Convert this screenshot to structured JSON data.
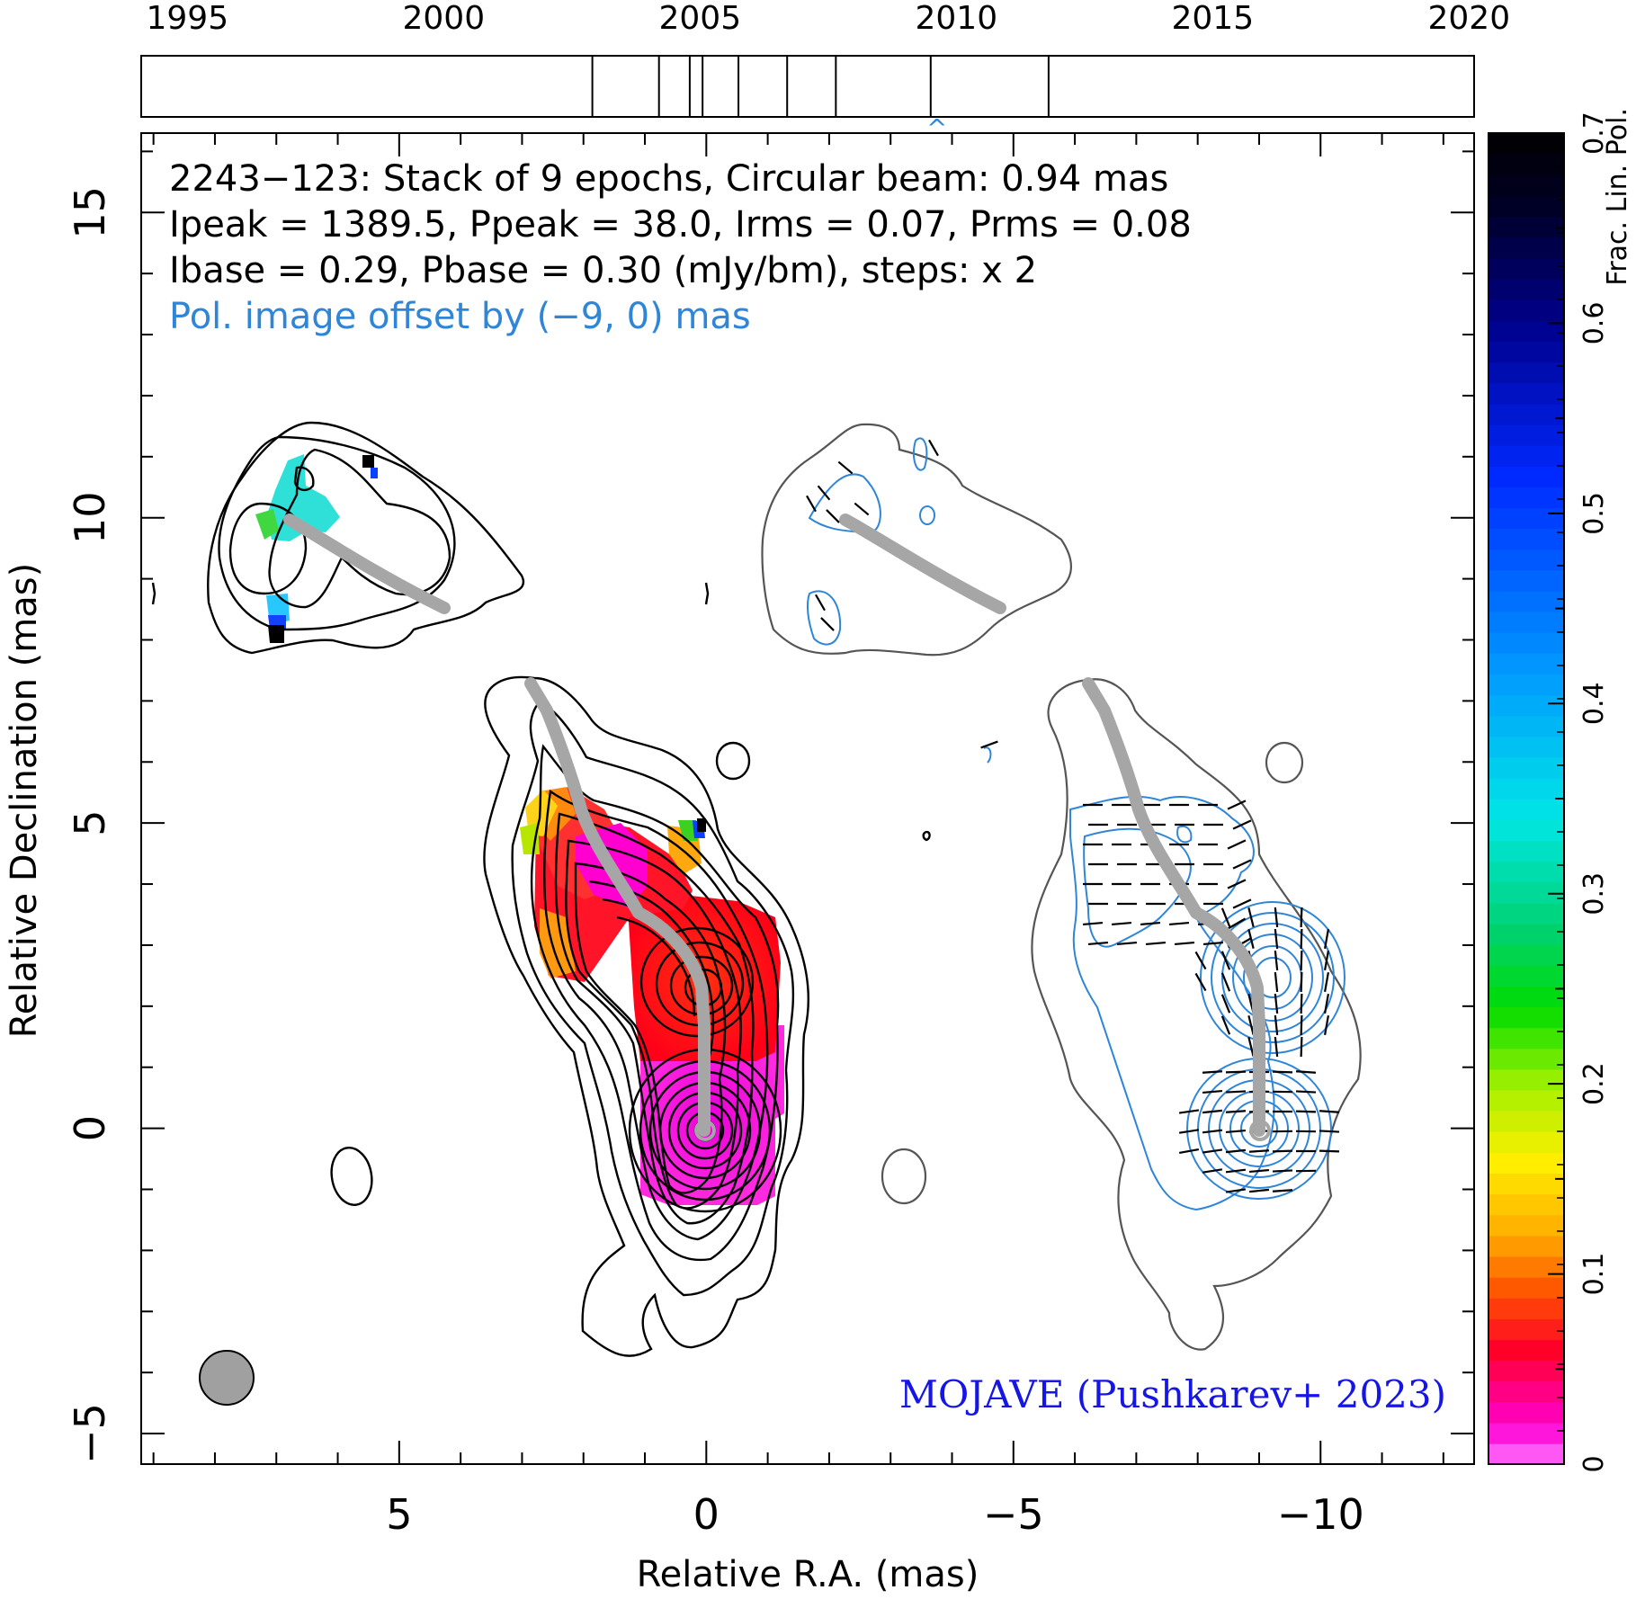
{
  "chart_data": {
    "type": "heatmap",
    "source": "2243−123",
    "info_lines": [
      "2243−123: Stack of 9 epochs, Circular beam: 0.94 mas",
      "Ipeak = 1389.5, Ppeak = 38.0, Irms = 0.07, Prms = 0.08",
      "Ibase = 0.29, Pbase = 0.30 (mJy/bm), steps: x 2"
    ],
    "offset_note": "Pol. image offset by (−9, 0) mas",
    "credit": "MOJAVE (Pushkarev+ 2023)",
    "xlabel": "Relative R.A. (mas)",
    "ylabel": "Relative Declination (mas)",
    "colorbar_label": "Frac. Lin. Pol.",
    "xlim": [
      9.2,
      -12.5
    ],
    "ylim": [
      -5.5,
      16.3
    ],
    "x_ticks": [
      5,
      0,
      -5,
      -10
    ],
    "x_tick_labels": [
      "5",
      "0",
      "−5",
      "−10"
    ],
    "y_ticks": [
      -5,
      0,
      5,
      10,
      15
    ],
    "y_tick_labels": [
      "−5",
      "0",
      "5",
      "10",
      "15"
    ],
    "colorbar_range": [
      0,
      0.7
    ],
    "colorbar_ticks": [
      0,
      0.1,
      0.2,
      0.3,
      0.4,
      0.5,
      0.6,
      0.7
    ],
    "colorbar_tick_labels": [
      "0",
      "0.1",
      "0.2",
      "0.3",
      "0.4",
      "0.5",
      "0.6",
      "0.7"
    ],
    "epoch_axis": {
      "range": [
        1994.1,
        2020.1
      ],
      "tick_labels": [
        "1995",
        "2000",
        "2005",
        "2010",
        "2015",
        "2020"
      ],
      "tick_years": [
        1995,
        2000,
        2005,
        2010,
        2015,
        2020
      ],
      "epochs": [
        2002.9,
        2004.2,
        2004.8,
        2005.05,
        2005.75,
        2006.7,
        2007.65,
        2009.5,
        2011.8
      ]
    },
    "beam_diameter_mas": 0.94,
    "pol_offset_mas": [
      -9,
      0
    ],
    "ridgeline_mas": [
      [
        0,
        0
      ],
      [
        0,
        1.1
      ],
      [
        0.1,
        2.2
      ],
      [
        0.4,
        3.2
      ],
      [
        1.2,
        3.9
      ],
      [
        1.8,
        4.7
      ],
      [
        2.2,
        5.6
      ],
      [
        2.6,
        6.6
      ],
      [
        2.8,
        7.3
      ],
      [
        6.6,
        10.0
      ],
      [
        5.4,
        9.3
      ],
      [
        4.3,
        8.6
      ]
    ]
  },
  "colors": {
    "stokes_i_contour": "#000000",
    "pol_contour": "#2f86d8",
    "ridgeline": "#a6a6a6",
    "offset_note": "#2f86d8",
    "credit": "#1515e6",
    "beam": "#a0a0a0"
  }
}
